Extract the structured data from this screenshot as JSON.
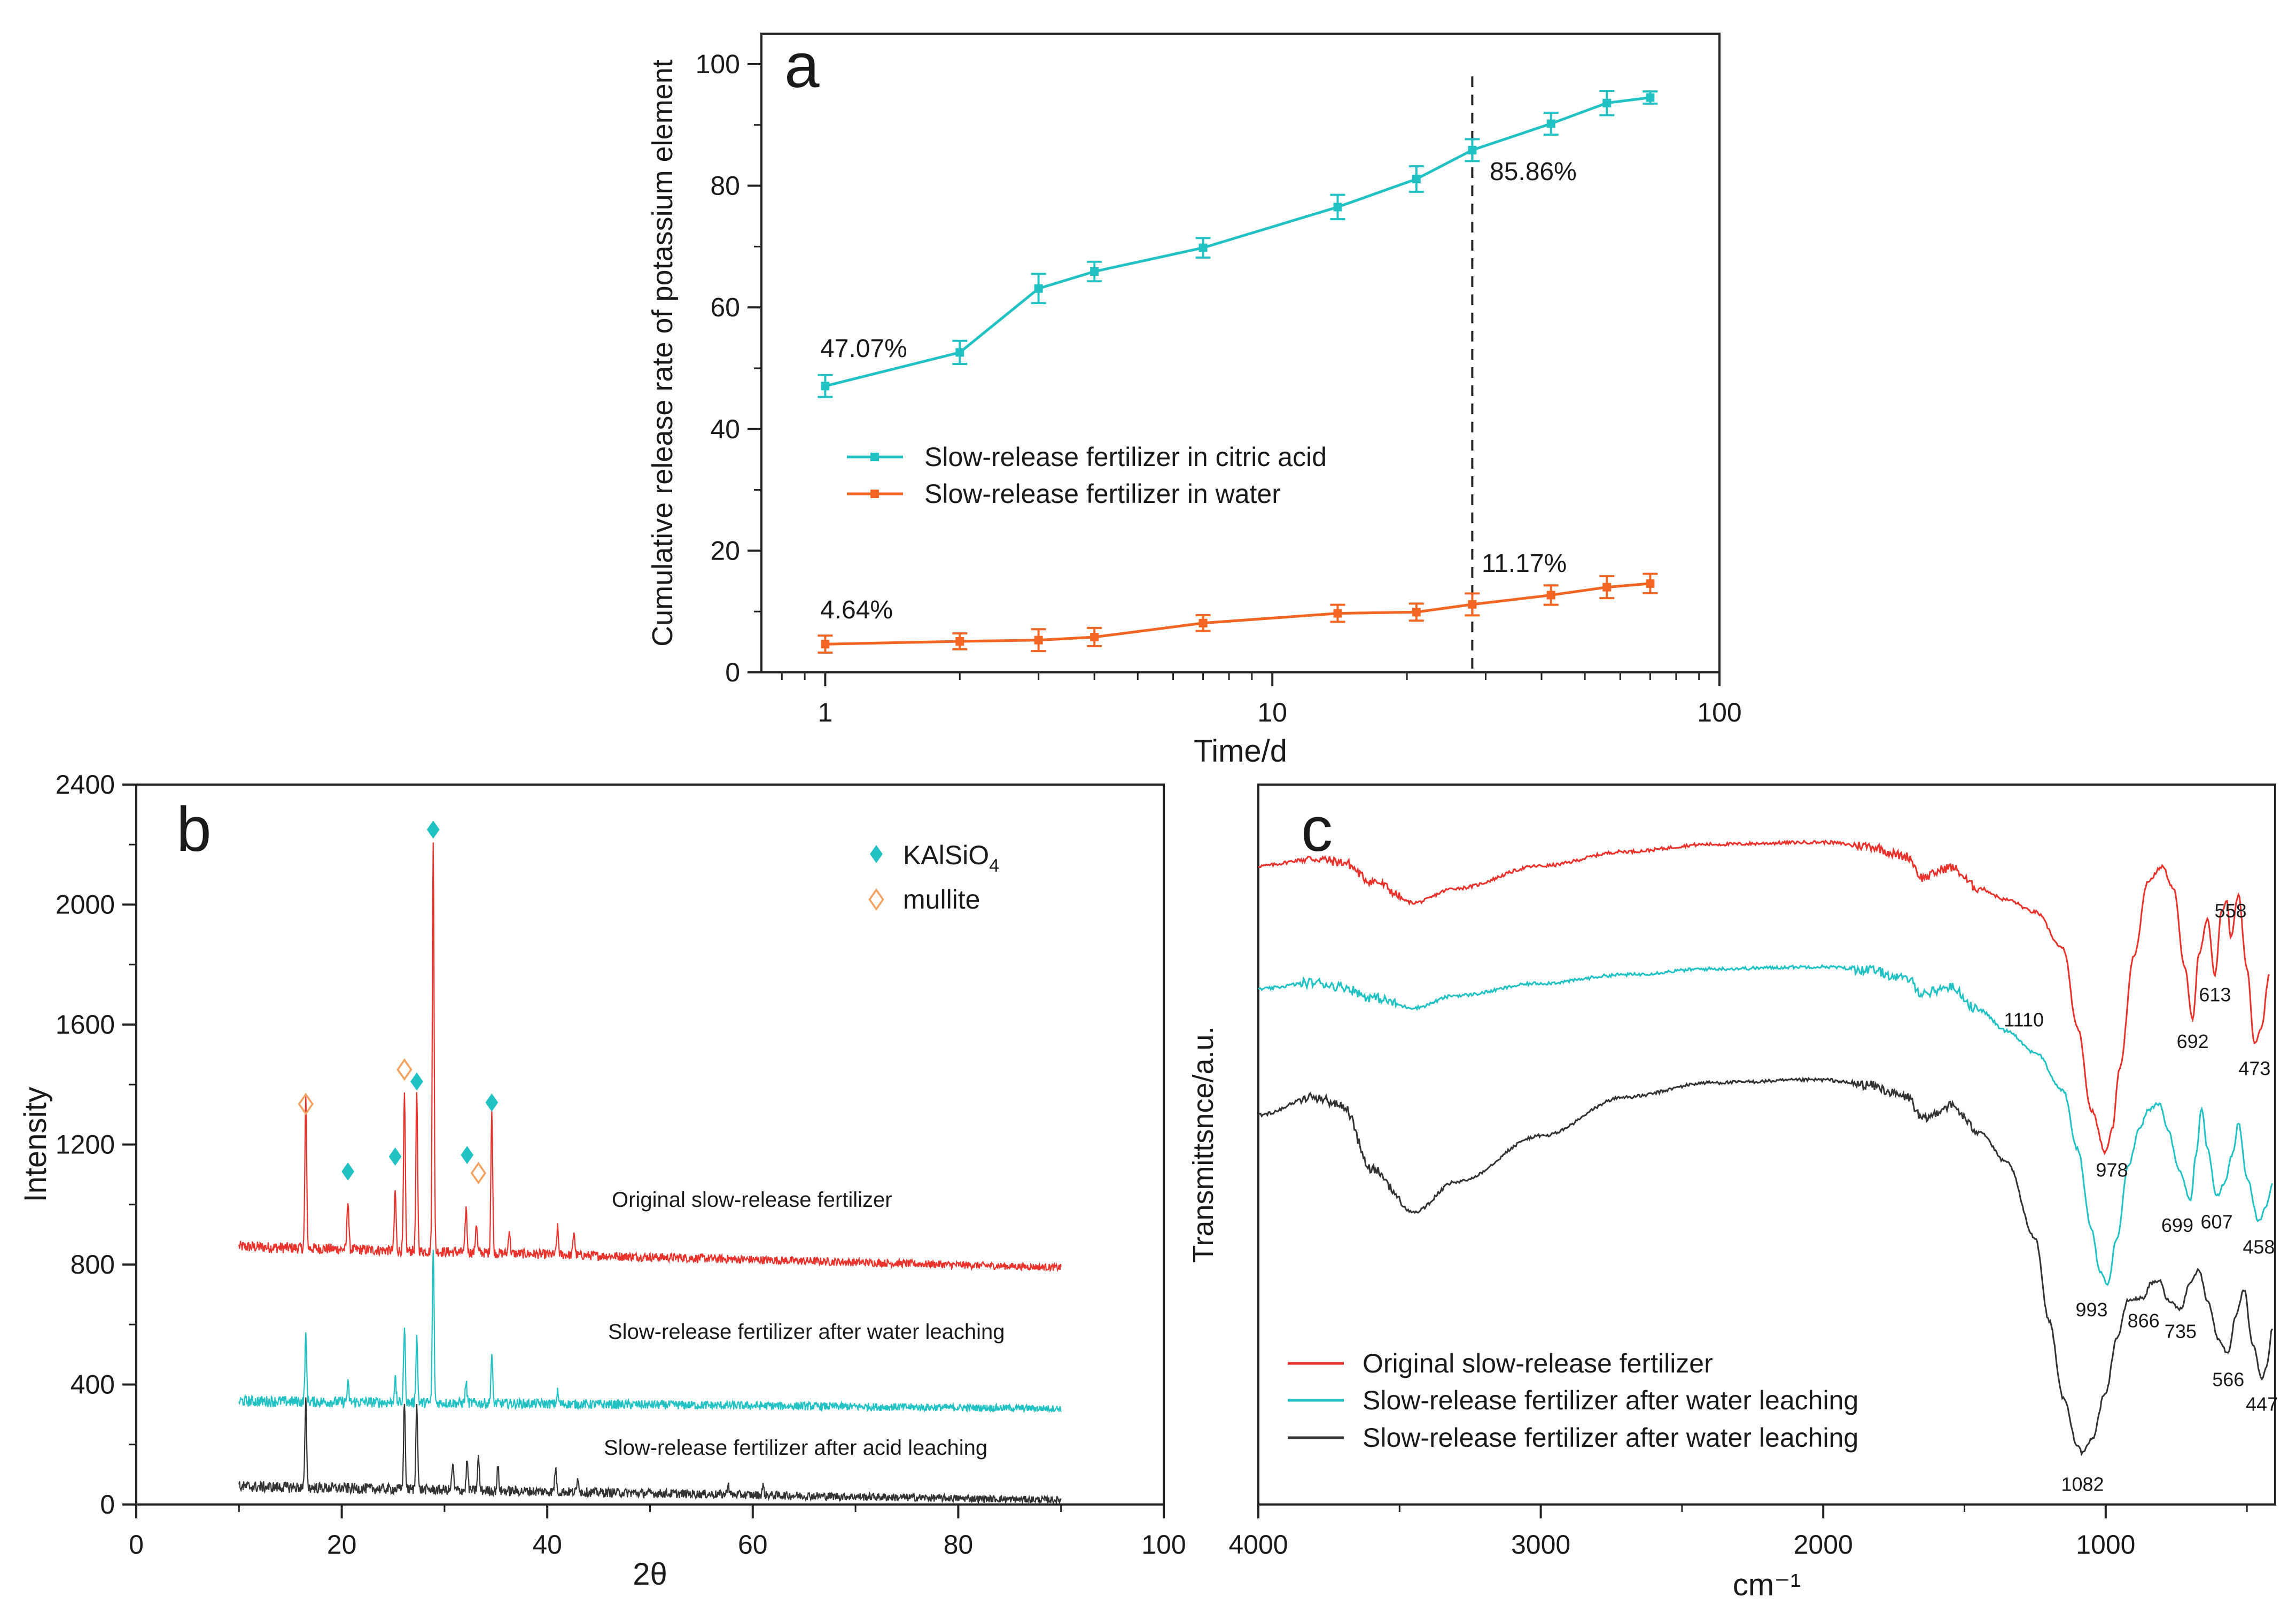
{
  "chart_data": [
    {
      "type": "line",
      "panel_label": "a",
      "xlabel": "Time/d",
      "ylabel": "Cumulative release rate of potassium element",
      "xscale": "log",
      "xlim": [
        0.72,
        100
      ],
      "ylim": [
        0,
        105
      ],
      "xticks": [
        1,
        10,
        100
      ],
      "xtick_labels": [
        "1",
        "10",
        "100"
      ],
      "yticks": [
        0,
        20,
        40,
        60,
        80,
        100
      ],
      "ytick_labels": [
        "0",
        "20",
        "40",
        "60",
        "80",
        "100"
      ],
      "vline_x": 28,
      "legend_position": "center-left",
      "series": [
        {
          "name": "Slow-release fertilizer in citric acid",
          "color": "#22c1c3",
          "x": [
            1,
            2,
            3,
            4,
            7,
            14,
            21,
            28,
            42,
            56,
            70
          ],
          "y": [
            47.07,
            52.6,
            63.1,
            65.9,
            69.8,
            76.5,
            81.1,
            85.86,
            90.2,
            93.6,
            94.5
          ],
          "err": [
            1.8,
            1.9,
            2.4,
            1.6,
            1.6,
            2.0,
            2.1,
            1.8,
            1.8,
            2.0,
            1.0
          ]
        },
        {
          "name": "Slow-release fertilizer in water",
          "color": "#f26522",
          "x": [
            1,
            2,
            3,
            4,
            7,
            14,
            21,
            28,
            42,
            56,
            70
          ],
          "y": [
            4.64,
            5.1,
            5.3,
            5.8,
            8.1,
            9.7,
            9.9,
            11.17,
            12.7,
            14.0,
            14.6
          ],
          "err": [
            1.4,
            1.3,
            1.8,
            1.5,
            1.3,
            1.4,
            1.4,
            1.8,
            1.6,
            1.8,
            1.6
          ]
        }
      ],
      "annotations": [
        "47.07%",
        "85.86%",
        "4.64%",
        "11.17%"
      ]
    },
    {
      "type": "line",
      "panel_label": "b",
      "xlabel": "2θ",
      "ylabel": "Intensity",
      "xlim": [
        0,
        100
      ],
      "ylim": [
        0,
        2400
      ],
      "xticks": [
        0,
        20,
        40,
        60,
        80,
        100
      ],
      "xtick_labels": [
        "0",
        "20",
        "40",
        "60",
        "80",
        "100"
      ],
      "yticks": [
        0,
        400,
        800,
        1200,
        1600,
        2000,
        2400
      ],
      "ytick_labels": [
        "0",
        "400",
        "800",
        "1200",
        "1600",
        "2000",
        "2400"
      ],
      "x_range_data": [
        10,
        90
      ],
      "series": [
        {
          "name": "Original slow-release fertilizer",
          "color": "#e8322b",
          "baseline_start": 860,
          "baseline_end": 790,
          "peaks": [
            [
              16.5,
              500
            ],
            [
              20.6,
              170
            ],
            [
              25.2,
              200
            ],
            [
              26.1,
              520
            ],
            [
              27.3,
              520
            ],
            [
              28.9,
              1380
            ],
            [
              32.1,
              150
            ],
            [
              33.1,
              100
            ],
            [
              34.6,
              480
            ],
            [
              36.3,
              80
            ],
            [
              41.0,
              90
            ],
            [
              42.6,
              80
            ]
          ]
        },
        {
          "name": "Slow-release fertilizer after water leaching",
          "color": "#22c1c3",
          "baseline_start": 345,
          "baseline_end": 320,
          "peaks": [
            [
              16.5,
              215
            ],
            [
              20.6,
              60
            ],
            [
              25.2,
              80
            ],
            [
              26.1,
              245
            ],
            [
              27.3,
              220
            ],
            [
              28.9,
              520
            ],
            [
              32.1,
              70
            ],
            [
              34.6,
              160
            ],
            [
              41.0,
              40
            ]
          ]
        },
        {
          "name": "Slow-release fertilizer after acid leaching",
          "color": "#333333",
          "baseline_start": 60,
          "baseline_end": 15,
          "peaks": [
            [
              16.5,
              285
            ],
            [
              26.1,
              290
            ],
            [
              27.3,
              300
            ],
            [
              30.8,
              90
            ],
            [
              32.2,
              100
            ],
            [
              33.3,
              110
            ],
            [
              35.2,
              80
            ],
            [
              40.8,
              80
            ],
            [
              43.0,
              50
            ],
            [
              57.6,
              40
            ],
            [
              61.0,
              30
            ]
          ]
        }
      ],
      "legend": [
        {
          "label_main": "KAlSiO",
          "label_sub": "4",
          "marker": "filled-diamond",
          "color": "#22c1c3"
        },
        {
          "label_main": "mullite",
          "marker": "open-diamond",
          "color": "#f4a261"
        }
      ],
      "kalsio4_markers": [
        [
          20.6,
          1110
        ],
        [
          25.2,
          1160
        ],
        [
          27.3,
          1410
        ],
        [
          28.9,
          2250
        ],
        [
          32.2,
          1165
        ],
        [
          34.6,
          1340
        ]
      ],
      "mullite_markers": [
        [
          16.5,
          1335
        ],
        [
          26.1,
          1450
        ],
        [
          33.3,
          1105
        ]
      ]
    },
    {
      "type": "line",
      "panel_label": "c",
      "xlabel": "cm⁻¹",
      "ylabel": "Transmittsnce/a.u.",
      "xlim": [
        4000,
        400
      ],
      "ylim": [
        0,
        100
      ],
      "xticks": [
        4000,
        3000,
        2000,
        1000
      ],
      "xtick_labels": [
        "4000",
        "3000",
        "2000",
        "1000"
      ],
      "series": [
        {
          "name": "Original slow-release fertilizer",
          "color": "#e8322b",
          "points": [
            [
              4000,
              88.7
            ],
            [
              3800,
              89.7
            ],
            [
              3700,
              89.2
            ],
            [
              3600,
              86.6
            ],
            [
              3450,
              83.6
            ],
            [
              3300,
              85.6
            ],
            [
              3000,
              88.7
            ],
            [
              2700,
              90.7
            ],
            [
              2400,
              91.7
            ],
            [
              2000,
              92.0
            ],
            [
              1850,
              91.5
            ],
            [
              1700,
              90.0
            ],
            [
              1650,
              87.1
            ],
            [
              1550,
              88.5
            ],
            [
              1450,
              85.6
            ],
            [
              1350,
              84.0
            ],
            [
              1250,
              82.3
            ],
            [
              1150,
              77.2
            ],
            [
              1100,
              66.2
            ],
            [
              1050,
              54.7
            ],
            [
              1000,
              48.9
            ],
            [
              978,
              52.1
            ],
            [
              950,
              60.7
            ],
            [
              900,
              76.3
            ],
            [
              850,
              86.6
            ],
            [
              800,
              88.6
            ],
            [
              760,
              85.6
            ],
            [
              720,
              74.5
            ],
            [
              692,
              67.5
            ],
            [
              670,
              76.3
            ],
            [
              640,
              81.2
            ],
            [
              613,
              73.6
            ],
            [
              590,
              82.3
            ],
            [
              570,
              84.0
            ],
            [
              558,
              78.6
            ],
            [
              530,
              84.6
            ],
            [
              500,
              74.5
            ],
            [
              473,
              64.1
            ],
            [
              450,
              66.1
            ],
            [
              420,
              73.6
            ]
          ]
        },
        {
          "name": "Slow-release fertilizer after water leaching",
          "color": "#22c1c3",
          "points": [
            [
              4000,
              71.6
            ],
            [
              3800,
              72.5
            ],
            [
              3700,
              71.9
            ],
            [
              3600,
              70.4
            ],
            [
              3450,
              69.0
            ],
            [
              3300,
              70.7
            ],
            [
              3000,
              72.4
            ],
            [
              2700,
              73.6
            ],
            [
              2400,
              74.4
            ],
            [
              2000,
              74.7
            ],
            [
              1850,
              74.3
            ],
            [
              1700,
              73.0
            ],
            [
              1650,
              71.0
            ],
            [
              1550,
              71.9
            ],
            [
              1450,
              68.7
            ],
            [
              1350,
              65.8
            ],
            [
              1250,
              62.8
            ],
            [
              1150,
              57.5
            ],
            [
              1100,
              49.4
            ],
            [
              1050,
              38.3
            ],
            [
              1020,
              32.3
            ],
            [
              993,
              30.6
            ],
            [
              960,
              37.1
            ],
            [
              920,
              47.1
            ],
            [
              880,
              52.1
            ],
            [
              850,
              54.8
            ],
            [
              810,
              55.7
            ],
            [
              780,
              52.1
            ],
            [
              740,
              46.4
            ],
            [
              699,
              42.3
            ],
            [
              680,
              48.7
            ],
            [
              660,
              55.1
            ],
            [
              640,
              49.4
            ],
            [
              607,
              42.8
            ],
            [
              580,
              44.6
            ],
            [
              550,
              48.7
            ],
            [
              530,
              53.1
            ],
            [
              500,
              45.4
            ],
            [
              458,
              39.3
            ],
            [
              430,
              41.6
            ],
            [
              410,
              44.6
            ]
          ]
        },
        {
          "name": "Slow-release fertilizer after water leaching",
          "color": "#333333",
          "points": [
            [
              4000,
              54.1
            ],
            [
              3800,
              56.6
            ],
            [
              3700,
              55.4
            ],
            [
              3600,
              46.6
            ],
            [
              3450,
              40.6
            ],
            [
              3300,
              44.8
            ],
            [
              3000,
              51.2
            ],
            [
              2700,
              56.6
            ],
            [
              2400,
              58.6
            ],
            [
              2000,
              59.0
            ],
            [
              1850,
              58.3
            ],
            [
              1700,
              56.6
            ],
            [
              1650,
              53.5
            ],
            [
              1550,
              55.4
            ],
            [
              1450,
              51.9
            ],
            [
              1350,
              47.5
            ],
            [
              1250,
              37.1
            ],
            [
              1200,
              25.5
            ],
            [
              1150,
              14.8
            ],
            [
              1100,
              8.3
            ],
            [
              1082,
              7.1
            ],
            [
              1050,
              9.0
            ],
            [
              1000,
              15.6
            ],
            [
              960,
              23.2
            ],
            [
              920,
              28.4
            ],
            [
              866,
              28.7
            ],
            [
              840,
              30.7
            ],
            [
              810,
              31.1
            ],
            [
              780,
              28.4
            ],
            [
              735,
              27.2
            ],
            [
              700,
              30.9
            ],
            [
              670,
              32.6
            ],
            [
              640,
              28.4
            ],
            [
              600,
              22.9
            ],
            [
              566,
              20.9
            ],
            [
              540,
              26.1
            ],
            [
              510,
              29.8
            ],
            [
              480,
              22.3
            ],
            [
              447,
              17.5
            ],
            [
              430,
              19.2
            ],
            [
              410,
              24.4
            ]
          ]
        }
      ],
      "peak_labels": [
        {
          "label": "558",
          "x": 558,
          "y": 78.6
        },
        {
          "label": "613",
          "x": 613,
          "y": 73.6
        },
        {
          "label": "692",
          "x": 692,
          "y": 67.5
        },
        {
          "label": "473",
          "x": 473,
          "y": 64.1
        },
        {
          "label": "1110",
          "x": 1110,
          "y": 69.0
        },
        {
          "label": "978",
          "x": 978,
          "y": 50.0
        },
        {
          "label": "699",
          "x": 699,
          "y": 42.3
        },
        {
          "label": "607",
          "x": 607,
          "y": 42.8
        },
        {
          "label": "458",
          "x": 458,
          "y": 39.3
        },
        {
          "label": "993",
          "x": 993,
          "y": 30.6
        },
        {
          "label": "866",
          "x": 866,
          "y": 28.7
        },
        {
          "label": "735",
          "x": 735,
          "y": 27.2
        },
        {
          "label": "566",
          "x": 566,
          "y": 20.9
        },
        {
          "label": "447",
          "x": 447,
          "y": 17.5
        },
        {
          "label": "1082",
          "x": 1082,
          "y": 7.1
        }
      ]
    }
  ]
}
